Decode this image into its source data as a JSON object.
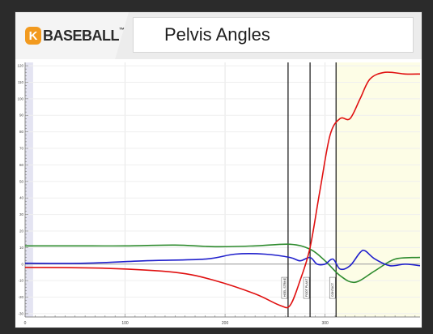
{
  "header": {
    "logo_letter": "K",
    "logo_text": "BASEBALL",
    "logo_tm": "™",
    "title": "Pelvis Angles"
  },
  "chart_data": {
    "type": "line",
    "xlim": [
      0,
      395
    ],
    "ylim": [
      -32,
      122
    ],
    "x_ticks": [
      0,
      100,
      200,
      300
    ],
    "y_ticks": [
      120,
      110,
      100,
      90,
      80,
      70,
      60,
      50,
      40,
      30,
      20,
      10,
      0,
      -10,
      -20,
      -30
    ],
    "events": [
      {
        "name": "heel-strike",
        "label": "HEEL STRIKE",
        "x": 263
      },
      {
        "name": "foot-plant",
        "label": "FOOT PLANT",
        "x": 285
      },
      {
        "name": "contact",
        "label": "CONTACT",
        "x": 311
      }
    ],
    "highlight_start": 311,
    "series": [
      {
        "color": "#2e8b2e",
        "points": [
          [
            0,
            11
          ],
          [
            50,
            11
          ],
          [
            100,
            11
          ],
          [
            150,
            11.5
          ],
          [
            190,
            10.5
          ],
          [
            230,
            11
          ],
          [
            265,
            12
          ],
          [
            285,
            9
          ],
          [
            300,
            2
          ],
          [
            315,
            -7
          ],
          [
            330,
            -11
          ],
          [
            350,
            -4
          ],
          [
            370,
            3
          ],
          [
            395,
            4
          ]
        ]
      },
      {
        "color": "#2020cc",
        "points": [
          [
            0,
            0.5
          ],
          [
            60,
            0.5
          ],
          [
            120,
            2
          ],
          [
            180,
            3
          ],
          [
            210,
            6
          ],
          [
            240,
            6
          ],
          [
            265,
            4
          ],
          [
            275,
            2
          ],
          [
            285,
            4
          ],
          [
            292,
            0
          ],
          [
            300,
            0
          ],
          [
            308,
            3
          ],
          [
            315,
            -3
          ],
          [
            325,
            -1
          ],
          [
            335,
            7
          ],
          [
            340,
            8
          ],
          [
            350,
            3
          ],
          [
            365,
            -1
          ],
          [
            380,
            0
          ],
          [
            395,
            -1
          ]
        ]
      },
      {
        "color": "#e01010",
        "points": [
          [
            0,
            -2
          ],
          [
            80,
            -2.5
          ],
          [
            150,
            -5
          ],
          [
            190,
            -10
          ],
          [
            230,
            -18
          ],
          [
            255,
            -25
          ],
          [
            265,
            -25
          ],
          [
            275,
            -10
          ],
          [
            285,
            10
          ],
          [
            295,
            45
          ],
          [
            305,
            78
          ],
          [
            315,
            88
          ],
          [
            325,
            88
          ],
          [
            335,
            100
          ],
          [
            345,
            112
          ],
          [
            360,
            116
          ],
          [
            380,
            115
          ],
          [
            395,
            115
          ]
        ]
      }
    ]
  }
}
